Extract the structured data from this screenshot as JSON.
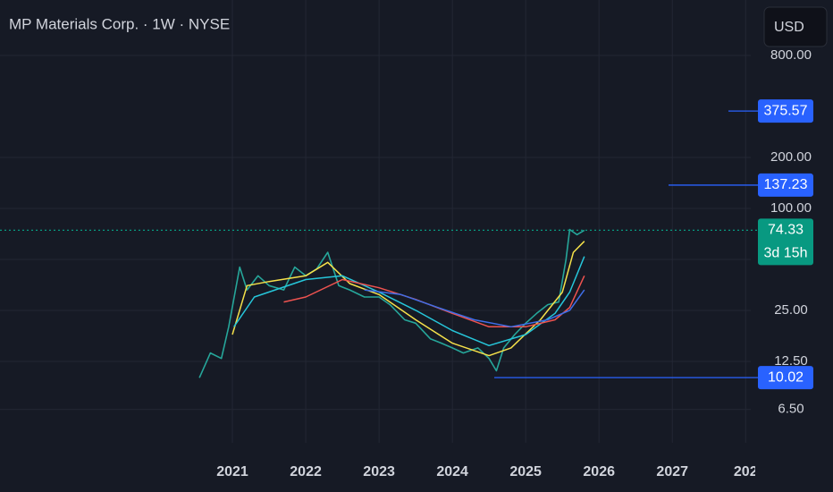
{
  "chart_data": {
    "type": "line",
    "title": "MP Materials Corp. · 1W · NYSE",
    "currency_button": "USD",
    "log_scale": true,
    "grid": true,
    "xlim": [
      2017.83,
      2028.07
    ],
    "xticks": [
      2021,
      2022,
      2023,
      2024,
      2025,
      2026,
      2027,
      {
        "value": 2028,
        "label": "202"
      }
    ],
    "ylim": [
      4.13,
      1700
    ],
    "yticks": [
      {
        "value": 6.5,
        "label": "6.50"
      },
      {
        "value": 12.5,
        "label": "12.50"
      },
      {
        "value": 25,
        "label": "25.00"
      },
      {
        "value": 50,
        "label": "50.00"
      },
      {
        "value": 100,
        "label": "100.00"
      },
      {
        "value": 200,
        "label": "200.00"
      },
      {
        "value": 800,
        "label": "800.00"
      }
    ],
    "series": [
      {
        "name": "Price",
        "color": "#26a69a",
        "x": [
          2020.55,
          2020.7,
          2020.85,
          2020.95,
          2021.1,
          2021.2,
          2021.35,
          2021.5,
          2021.7,
          2021.85,
          2022.0,
          2022.15,
          2022.3,
          2022.45,
          2022.6,
          2022.8,
          2023.0,
          2023.15,
          2023.35,
          2023.5,
          2023.7,
          2023.85,
          2024.0,
          2024.15,
          2024.35,
          2024.5,
          2024.6,
          2024.7,
          2024.85,
          2025.0,
          2025.15,
          2025.3,
          2025.45,
          2025.55,
          2025.6,
          2025.7,
          2025.8
        ],
        "values": [
          10,
          14,
          13,
          20,
          45,
          33,
          40,
          35,
          33,
          45,
          40,
          44,
          55,
          35,
          33,
          30,
          30,
          27,
          22,
          21,
          17,
          16,
          15,
          14,
          15,
          13,
          11,
          15,
          18,
          21,
          24,
          27,
          28,
          50,
          75,
          70,
          74.33
        ]
      },
      {
        "name": "MA fast",
        "color": "#f5e14a",
        "x": [
          2021.0,
          2021.2,
          2021.5,
          2022.0,
          2022.3,
          2022.6,
          2023.0,
          2023.5,
          2024.0,
          2024.5,
          2024.8,
          2025.2,
          2025.5,
          2025.65,
          2025.8
        ],
        "values": [
          18,
          35,
          37,
          40,
          48,
          36,
          31,
          22,
          16,
          13.5,
          15,
          22,
          32,
          55,
          64
        ]
      },
      {
        "name": "MA medium",
        "color": "#26c6da",
        "x": [
          2021.02,
          2021.3,
          2022.0,
          2022.5,
          2023.0,
          2023.5,
          2024.0,
          2024.5,
          2025.0,
          2025.4,
          2025.6,
          2025.8
        ],
        "values": [
          20,
          30,
          38,
          40,
          32,
          25,
          19,
          15.5,
          18,
          24,
          32,
          52
        ]
      },
      {
        "name": "MA slow",
        "color": "#ef5350",
        "x": [
          2021.7,
          2022.0,
          2022.5,
          2023.0,
          2023.5,
          2024.0,
          2024.5,
          2025.0,
          2025.4,
          2025.6,
          2025.8
        ],
        "values": [
          28,
          30,
          38,
          34,
          29,
          24,
          20,
          20,
          22,
          26,
          40
        ]
      },
      {
        "name": "MA long",
        "color": "#3f6ee8",
        "x": [
          2022.8,
          2023.3,
          2023.8,
          2024.3,
          2024.8,
          2025.3,
          2025.6,
          2025.8
        ],
        "values": [
          33,
          31,
          26,
          22,
          20,
          22,
          25,
          33
        ]
      }
    ],
    "price_labels": [
      {
        "value": 375.57,
        "color": "#2962ff"
      },
      {
        "value": 137.23,
        "color": "#2962ff"
      },
      {
        "value": 74.33,
        "color": "#089981",
        "countdown": "3d 15h"
      },
      {
        "value": 10.02,
        "color": "#2962ff"
      }
    ]
  }
}
